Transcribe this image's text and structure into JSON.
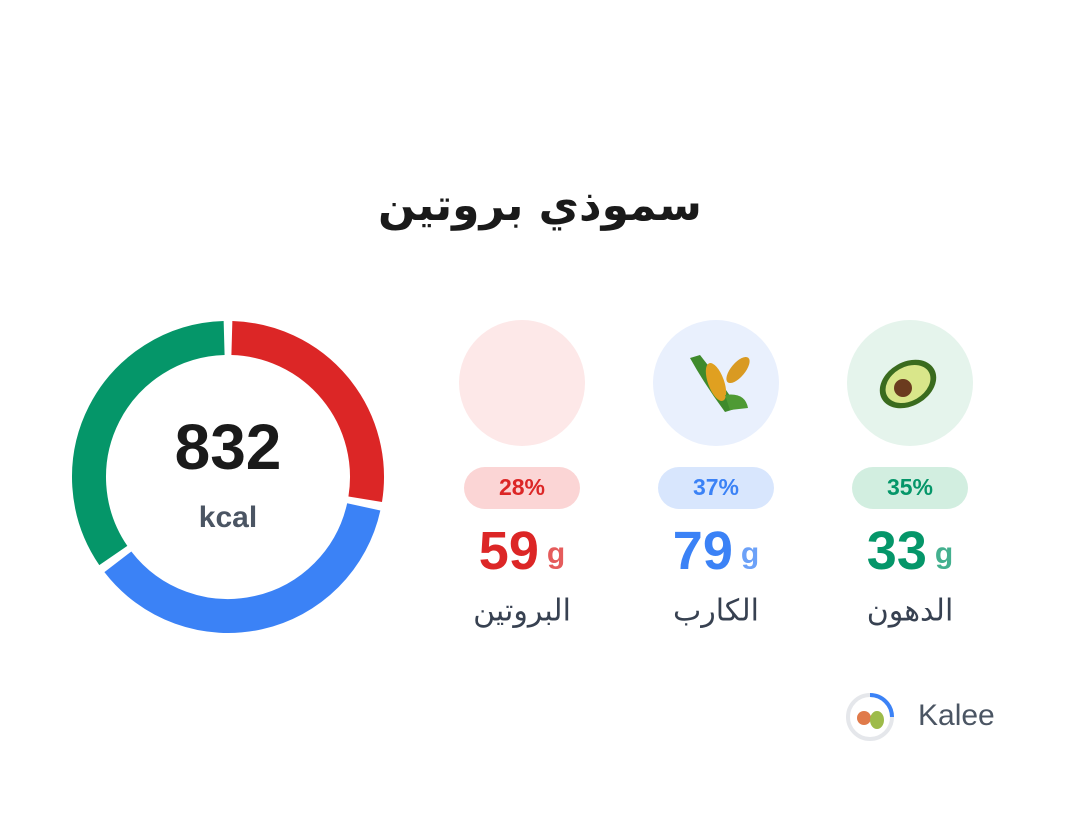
{
  "title": "سموذي بروتين",
  "calories": {
    "value": 832,
    "unit": "kcal"
  },
  "macros": [
    {
      "name": "البروتين",
      "percent": 28,
      "percent_label": "28%",
      "grams": 59,
      "unit": "g",
      "color": "#dc2626",
      "soft": "#fde8e8",
      "pill": "#fbd5d5"
    },
    {
      "name": "الكارب",
      "percent": 37,
      "percent_label": "37%",
      "grams": 79,
      "unit": "g",
      "color": "#3b82f6",
      "soft": "#e9f0fd",
      "pill": "#d8e6fd"
    },
    {
      "name": "الدهون",
      "percent": 35,
      "percent_label": "35%",
      "grams": 33,
      "unit": "g",
      "color": "#059669",
      "soft": "#e5f4ec",
      "pill": "#d2eee0"
    }
  ],
  "brand": "Kalee"
}
